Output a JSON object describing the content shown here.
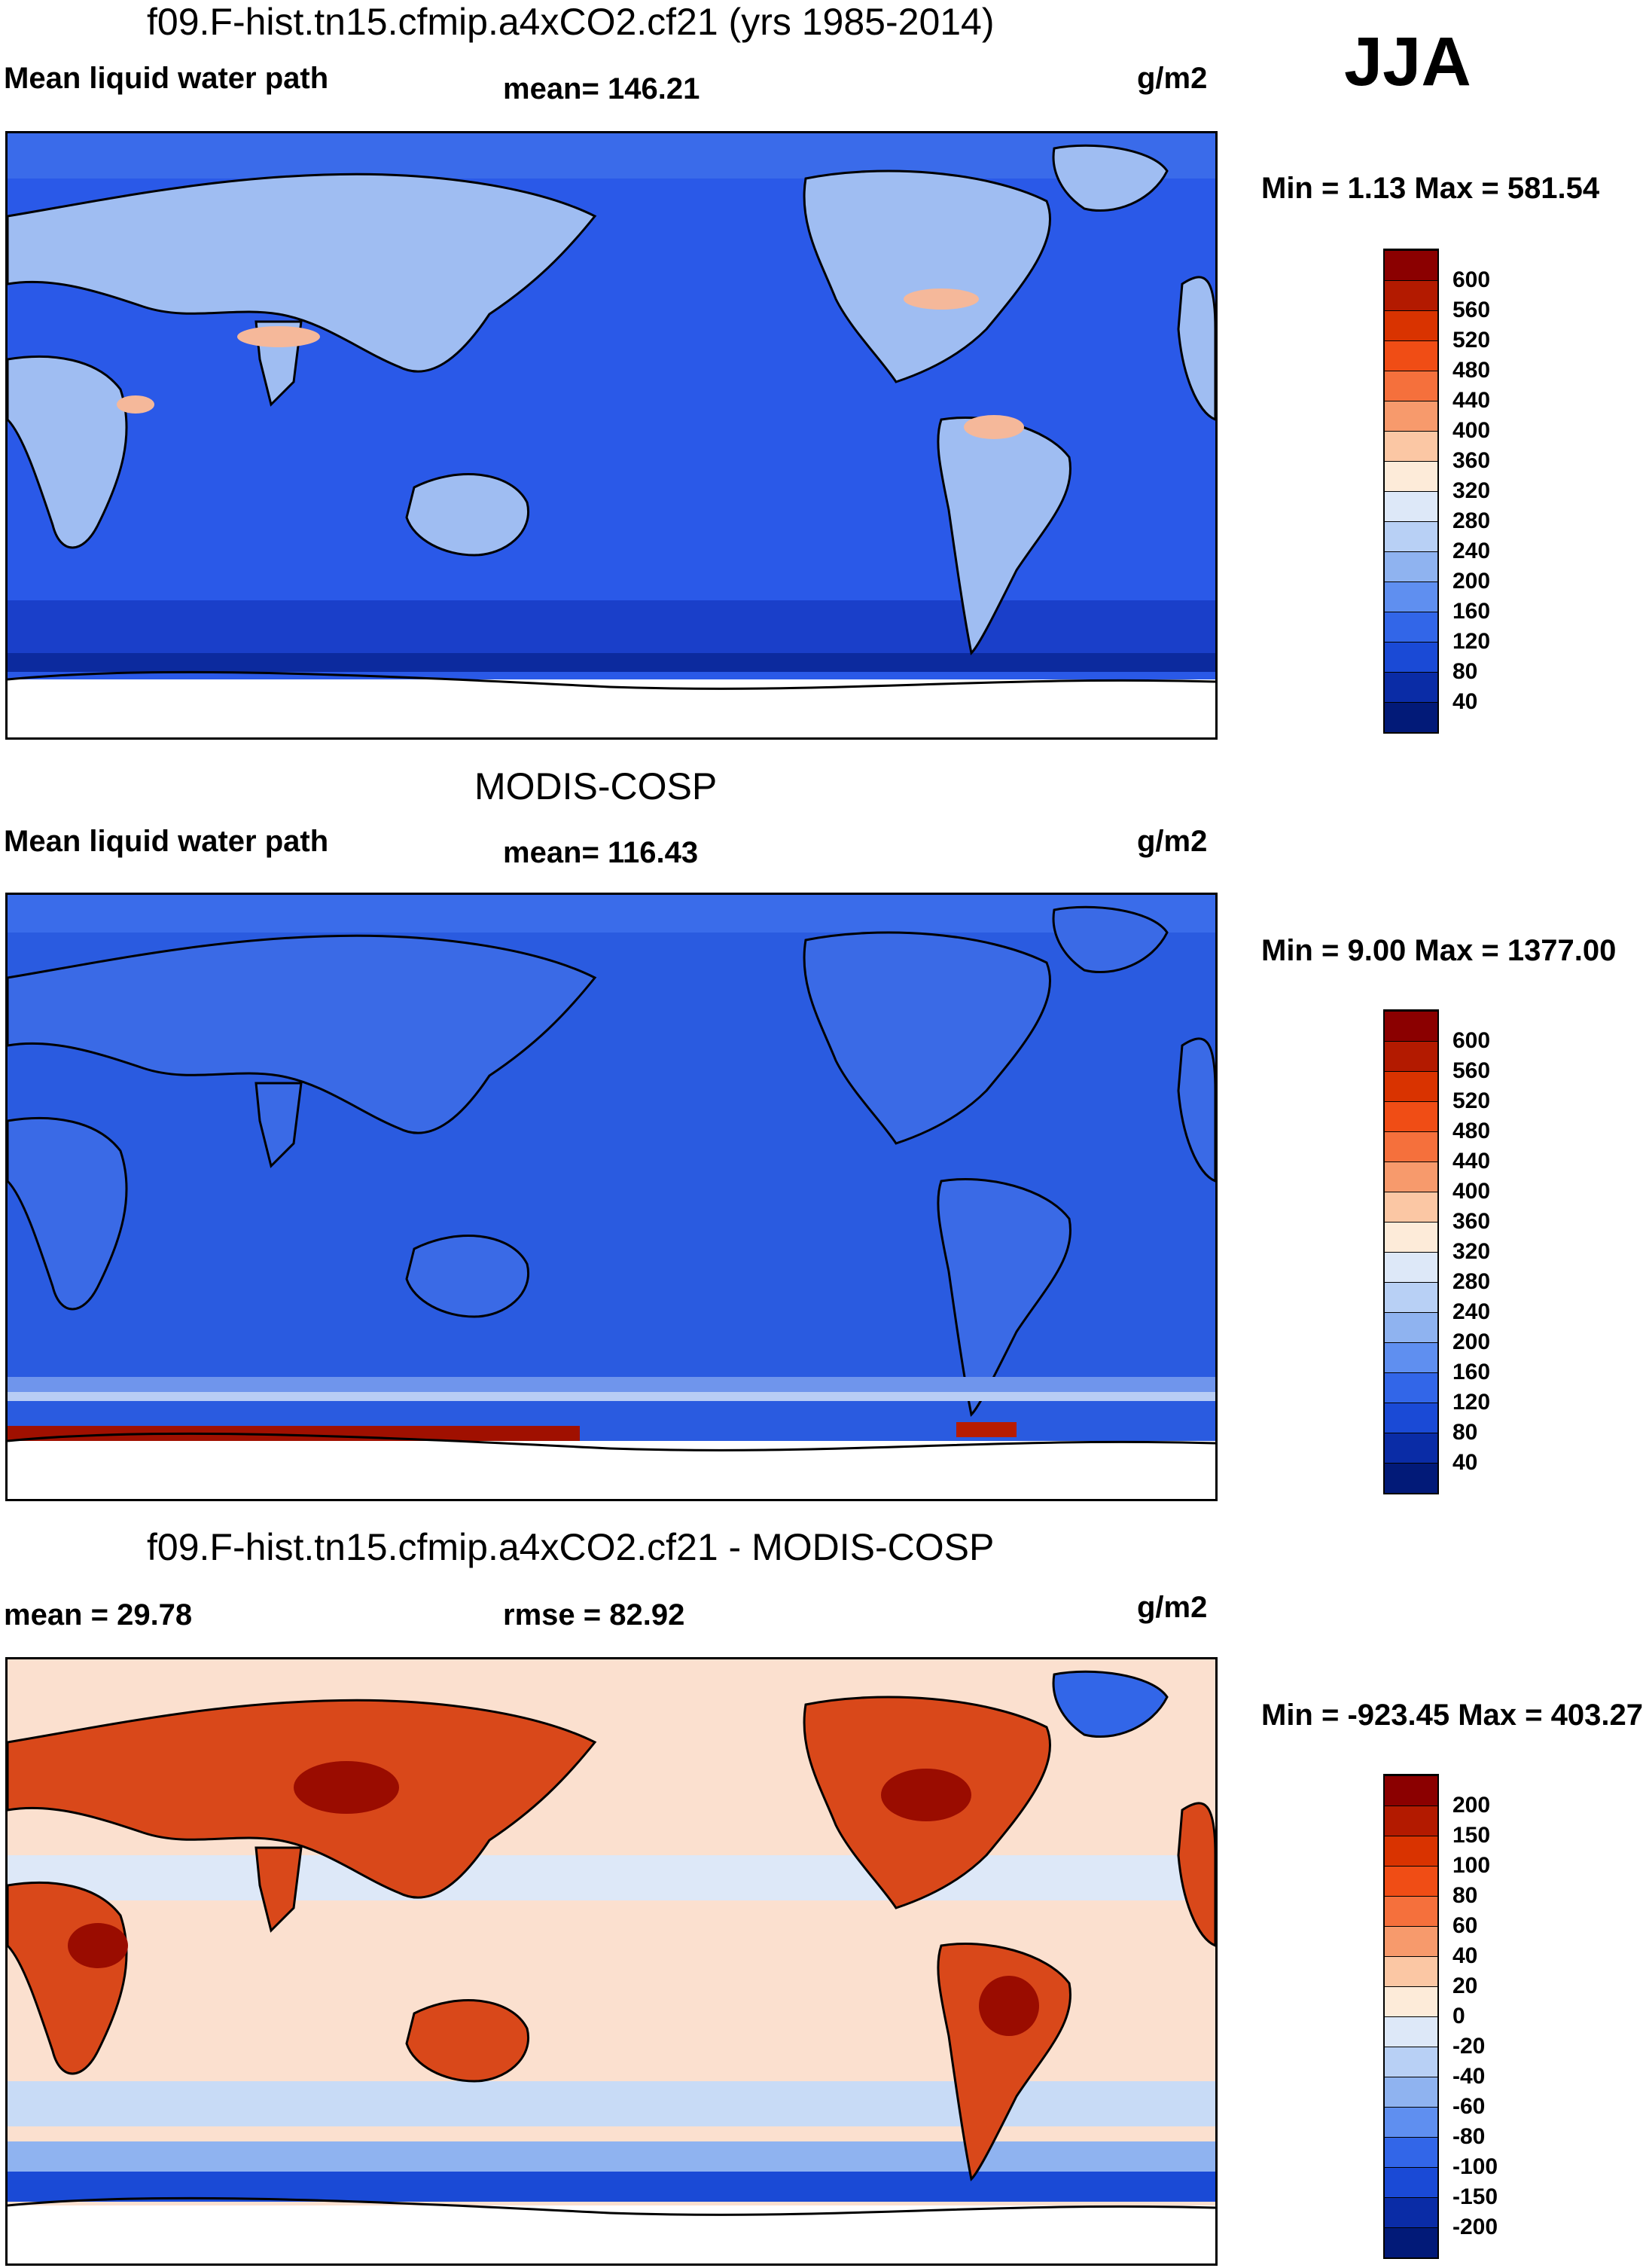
{
  "season": "JJA",
  "panels": [
    {
      "title": "f09.F-hist.tn15.cfmip.a4xCO2.cf21 (yrs 1985-2014)",
      "left_label": "Mean liquid water path",
      "center_label": "mean= 146.21",
      "units": "g/m2",
      "minmax": "Min =   1.13 Max = 581.54",
      "levels": [
        "600",
        "560",
        "520",
        "480",
        "440",
        "400",
        "360",
        "320",
        "280",
        "240",
        "200",
        "160",
        "120",
        "80",
        "40"
      ],
      "colors": [
        "#8b0000",
        "#b31a00",
        "#d93300",
        "#f04d15",
        "#f5703c",
        "#f79a6c",
        "#fbc7a4",
        "#fdebd9",
        "#dde8f8",
        "#b8d0f5",
        "#8fb3f0",
        "#5f8ff0",
        "#3266e8",
        "#1a4ad6",
        "#0a2ca6",
        "#021a78"
      ],
      "map_base": "#2a59e8"
    },
    {
      "title": "MODIS-COSP",
      "left_label": "Mean liquid water path",
      "center_label": "mean= 116.43",
      "units": "g/m2",
      "minmax": "Min =   9.00 Max = 1377.00",
      "levels": [
        "600",
        "560",
        "520",
        "480",
        "440",
        "400",
        "360",
        "320",
        "280",
        "240",
        "200",
        "160",
        "120",
        "80",
        "40"
      ],
      "colors": [
        "#8b0000",
        "#b31a00",
        "#d93300",
        "#f04d15",
        "#f5703c",
        "#f79a6c",
        "#fbc7a4",
        "#fdebd9",
        "#dde8f8",
        "#b8d0f5",
        "#8fb3f0",
        "#5f8ff0",
        "#3266e8",
        "#1a4ad6",
        "#0a2ca6",
        "#021a78"
      ],
      "map_base": "#2a5be0"
    },
    {
      "title": "f09.F-hist.tn15.cfmip.a4xCO2.cf21 - MODIS-COSP",
      "left_label": "mean =  29.78",
      "center_label": "rmse =  82.92",
      "units": "g/m2",
      "minmax": "Min = -923.45 Max = 403.27",
      "levels": [
        "200",
        "150",
        "100",
        "80",
        "60",
        "40",
        "20",
        "0",
        "-20",
        "-40",
        "-60",
        "-80",
        "-100",
        "-150",
        "-200"
      ],
      "colors": [
        "#8b0000",
        "#b31a00",
        "#d93300",
        "#f04d15",
        "#f5703c",
        "#f79a6c",
        "#fbc7a4",
        "#fdebd9",
        "#dde8f8",
        "#b8d0f5",
        "#8fb3f0",
        "#5f8ff0",
        "#3266e8",
        "#1a4ad6",
        "#0a2ca6",
        "#021a78"
      ],
      "map_base": "#fbe0cf"
    }
  ]
}
